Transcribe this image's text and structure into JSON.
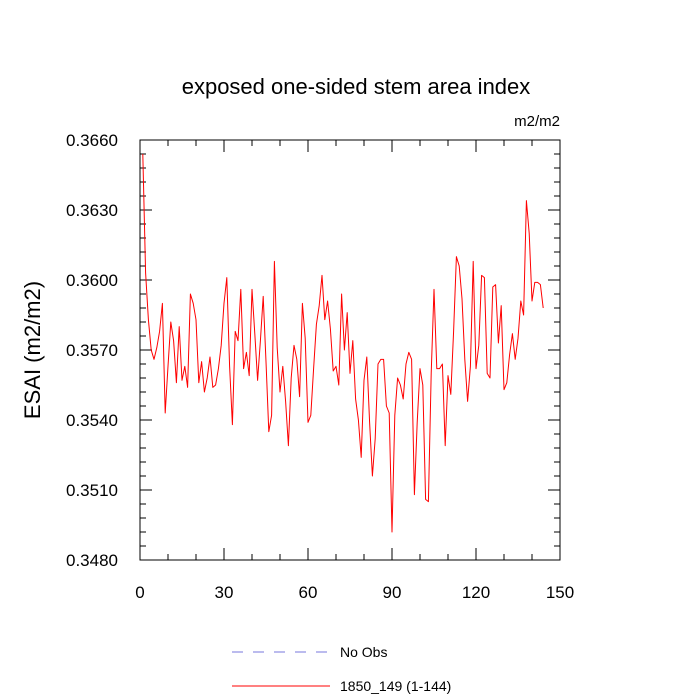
{
  "chart_data": {
    "type": "line",
    "title": "exposed one-sided stem area index",
    "units": "m2/m2",
    "ylabel": "ESAI  (m2/m2)",
    "xlabel": "",
    "xlim": [
      0,
      150
    ],
    "ylim": [
      0.348,
      0.366
    ],
    "xticks": [
      0,
      30,
      60,
      90,
      120,
      150
    ],
    "xtick_labels": [
      "0",
      "30",
      "60",
      "90",
      "120",
      "150"
    ],
    "yticks": [
      0.348,
      0.351,
      0.354,
      0.357,
      0.36,
      0.363,
      0.366
    ],
    "ytick_labels": [
      "0.3480",
      "0.3510",
      "0.3540",
      "0.3570",
      "0.3600",
      "0.3630",
      "0.3660"
    ],
    "legend_position": "bottom-center",
    "series": [
      {
        "name": "No Obs",
        "color": "#7777dd",
        "dashed": true,
        "x": [],
        "values": []
      },
      {
        "name": "1850_149 (1-144)",
        "color": "#ff0000",
        "dashed": false,
        "x_start": 1,
        "values": [
          0.3654,
          0.3603,
          0.3583,
          0.357,
          0.3566,
          0.3571,
          0.3578,
          0.359,
          0.3543,
          0.3563,
          0.3582,
          0.3574,
          0.3556,
          0.358,
          0.3557,
          0.3563,
          0.3554,
          0.3594,
          0.359,
          0.3583,
          0.3556,
          0.3565,
          0.3552,
          0.3558,
          0.3567,
          0.3554,
          0.3555,
          0.3562,
          0.3572,
          0.359,
          0.3601,
          0.3563,
          0.3538,
          0.3578,
          0.3574,
          0.3596,
          0.3562,
          0.3569,
          0.3559,
          0.3596,
          0.3577,
          0.3557,
          0.3574,
          0.3593,
          0.3565,
          0.3535,
          0.3542,
          0.3608,
          0.3571,
          0.3552,
          0.3563,
          0.3548,
          0.3529,
          0.3558,
          0.3572,
          0.3566,
          0.355,
          0.359,
          0.3575,
          0.3539,
          0.3542,
          0.3562,
          0.3581,
          0.3589,
          0.3602,
          0.3583,
          0.3591,
          0.3579,
          0.3561,
          0.3563,
          0.3555,
          0.3594,
          0.357,
          0.3586,
          0.356,
          0.3574,
          0.3549,
          0.354,
          0.3524,
          0.3557,
          0.3567,
          0.3539,
          0.3516,
          0.3532,
          0.3564,
          0.3566,
          0.3566,
          0.3546,
          0.3543,
          0.3492,
          0.3542,
          0.3558,
          0.3555,
          0.3549,
          0.3564,
          0.3569,
          0.3566,
          0.3508,
          0.3539,
          0.3562,
          0.3555,
          0.3506,
          0.3505,
          0.356,
          0.3596,
          0.3562,
          0.3562,
          0.3564,
          0.3529,
          0.3559,
          0.3551,
          0.3578,
          0.361,
          0.3606,
          0.3592,
          0.3566,
          0.3548,
          0.3563,
          0.3608,
          0.3562,
          0.3572,
          0.3602,
          0.3601,
          0.356,
          0.3558,
          0.3597,
          0.3598,
          0.3573,
          0.3589,
          0.3553,
          0.3556,
          0.3568,
          0.3577,
          0.3566,
          0.3575,
          0.3591,
          0.3585,
          0.3634,
          0.362,
          0.3591,
          0.3599,
          0.3599,
          0.3598,
          0.3588
        ]
      }
    ]
  }
}
